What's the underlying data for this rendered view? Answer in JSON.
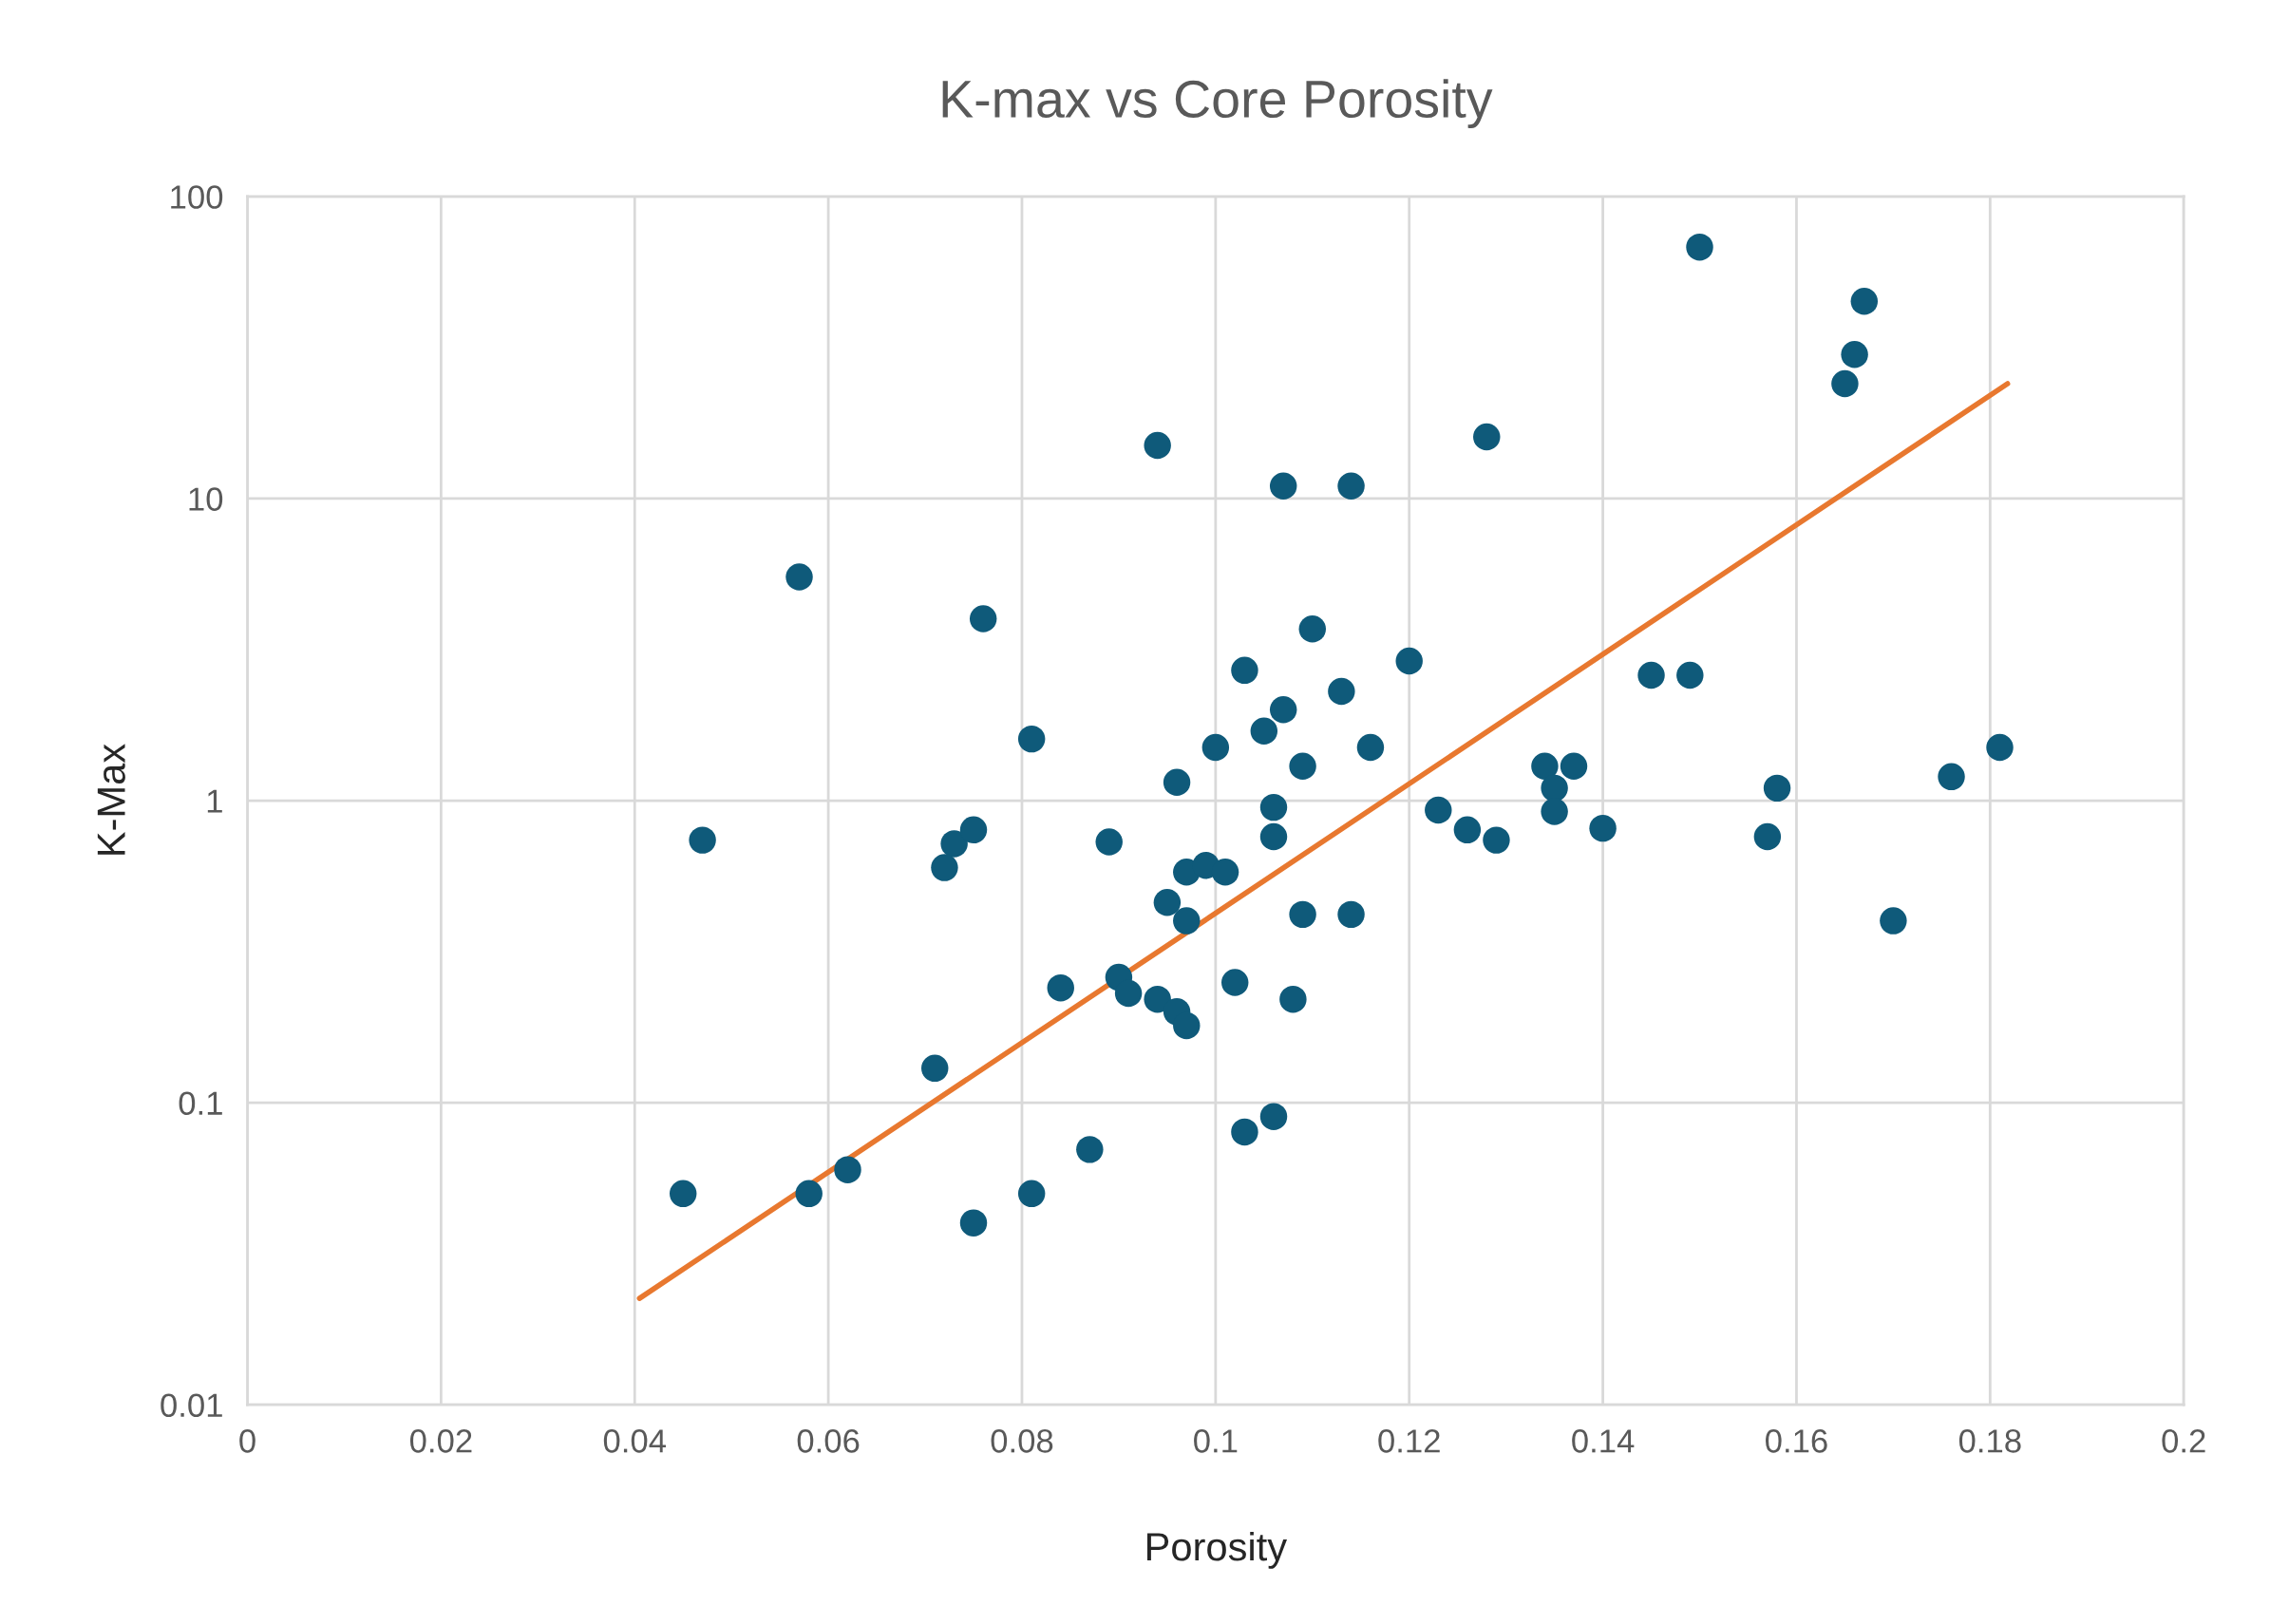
{
  "chart_data": {
    "type": "scatter",
    "title": "K-max vs Core Porosity",
    "xlabel": "Porosity",
    "ylabel": "K-Max",
    "log": "y",
    "grid": true,
    "legend": false,
    "xlim": [
      0,
      0.2
    ],
    "xticks": [
      0,
      0.02,
      0.04,
      0.06,
      0.08,
      0.1,
      0.12,
      0.14,
      0.16,
      0.18,
      0.2
    ],
    "ylim": [
      0.01,
      100
    ],
    "yticks": [
      0.01,
      0.1,
      1,
      10,
      100
    ],
    "series": [
      {
        "marker": "circle",
        "color": "#0f5a7a",
        "x": [
          0.15,
          0.167,
          0.166,
          0.165,
          0.094,
          0.128,
          0.107,
          0.114,
          0.057,
          0.076,
          0.11,
          0.103,
          0.12,
          0.113,
          0.107,
          0.145,
          0.149,
          0.081,
          0.105,
          0.1,
          0.116,
          0.181,
          0.109,
          0.134,
          0.137,
          0.135,
          0.096,
          0.158,
          0.176,
          0.106,
          0.123,
          0.135,
          0.126,
          0.129,
          0.14,
          0.157,
          0.106,
          0.047,
          0.089,
          0.073,
          0.075,
          0.072,
          0.097,
          0.099,
          0.101,
          0.095,
          0.097,
          0.109,
          0.114,
          0.17,
          0.084,
          0.09,
          0.091,
          0.094,
          0.096,
          0.097,
          0.102,
          0.108,
          0.071,
          0.106,
          0.103,
          0.087,
          0.045,
          0.058,
          0.062,
          0.081,
          0.075
        ],
        "values": [
          68,
          45,
          30,
          24,
          15,
          16,
          11,
          11,
          5.5,
          4.0,
          3.7,
          2.7,
          2.9,
          2.3,
          2.0,
          2.6,
          2.6,
          1.6,
          1.7,
          1.5,
          1.5,
          1.5,
          1.3,
          1.3,
          1.3,
          1.1,
          1.15,
          1.1,
          1.2,
          0.95,
          0.93,
          0.92,
          0.8,
          0.74,
          0.81,
          0.76,
          0.76,
          0.74,
          0.73,
          0.72,
          0.8,
          0.6,
          0.58,
          0.61,
          0.58,
          0.46,
          0.4,
          0.42,
          0.42,
          0.4,
          0.24,
          0.26,
          0.23,
          0.22,
          0.2,
          0.18,
          0.25,
          0.22,
          0.13,
          0.09,
          0.08,
          0.07,
          0.05,
          0.05,
          0.06,
          0.05,
          0.04
        ]
      },
      {
        "type": "line",
        "color": "#e8782f",
        "x": [
          0.0405,
          0.1818
        ],
        "values": [
          0.0225,
          24
        ]
      }
    ]
  }
}
